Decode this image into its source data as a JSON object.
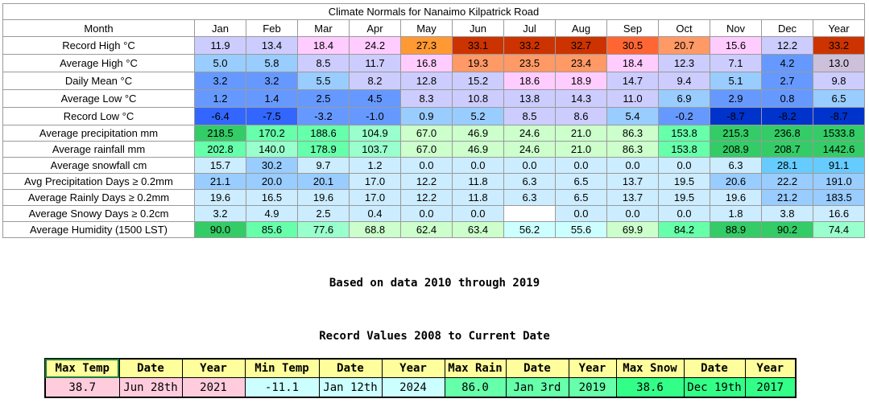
{
  "title": "Climate Normals for Nanaimo Kilpatrick Road",
  "columns": [
    "Month",
    "Jan",
    "Feb",
    "Mar",
    "Apr",
    "May",
    "Jun",
    "Jul",
    "Aug",
    "Sep",
    "Oct",
    "Nov",
    "Dec",
    "Year"
  ],
  "rows": [
    {
      "label": "Record High °C",
      "values": [
        "11.9",
        "13.4",
        "18.4",
        "24.2",
        "27.3",
        "33.1",
        "33.2",
        "32.7",
        "30.5",
        "20.7",
        "15.6",
        "12.2",
        "33.2"
      ],
      "colors": [
        "#ccccff",
        "#ccccff",
        "#ffccff",
        "#ffccff",
        "#ff9933",
        "#cc3300",
        "#cc3300",
        "#cc3300",
        "#ff6633",
        "#ff9966",
        "#ffccff",
        "#ccccff",
        "#cc3300"
      ]
    },
    {
      "label": "Average High °C",
      "values": [
        "5.0",
        "5.8",
        "8.5",
        "11.7",
        "16.8",
        "19.3",
        "23.5",
        "23.4",
        "18.4",
        "12.3",
        "7.1",
        "4.2",
        "13.0"
      ],
      "colors": [
        "#99ccff",
        "#99ccff",
        "#ccccff",
        "#ccccff",
        "#ffccff",
        "#ff9966",
        "#ff9966",
        "#ff9966",
        "#ffccff",
        "#ccccff",
        "#ccccff",
        "#6699ff",
        "#ccc0da"
      ]
    },
    {
      "label": "Daily Mean °C",
      "values": [
        "3.2",
        "3.2",
        "5.5",
        "8.2",
        "12.8",
        "15.2",
        "18.6",
        "18.9",
        "14.7",
        "9.4",
        "5.1",
        "2.7",
        "9.8"
      ],
      "colors": [
        "#6699ff",
        "#6699ff",
        "#99ccff",
        "#ccccff",
        "#ccccff",
        "#ccccff",
        "#ffccff",
        "#ffccff",
        "#ccccff",
        "#ccccff",
        "#99ccff",
        "#6699ff",
        "#ccccff"
      ]
    },
    {
      "label": "Average Low °C",
      "values": [
        "1.2",
        "1.4",
        "2.5",
        "4.5",
        "8.3",
        "10.8",
        "13.8",
        "14.3",
        "11.0",
        "6.9",
        "2.9",
        "0.8",
        "6.5"
      ],
      "colors": [
        "#6699ff",
        "#6699ff",
        "#6699ff",
        "#6699ff",
        "#ccccff",
        "#ccccff",
        "#ccccff",
        "#ccccff",
        "#ccccff",
        "#99ccff",
        "#6699ff",
        "#6699ff",
        "#99ccff"
      ]
    },
    {
      "label": "Record Low °C",
      "values": [
        "-6.4",
        "-7.5",
        "-3.2",
        "-1.0",
        "0.9",
        "5.2",
        "8.5",
        "8.6",
        "5.4",
        "-0.2",
        "-8.7",
        "-8.2",
        "-8.7"
      ],
      "colors": [
        "#3366ff",
        "#3366ff",
        "#6699ff",
        "#6699ff",
        "#99ccff",
        "#99ccff",
        "#ccccff",
        "#ccccff",
        "#99ccff",
        "#6699ff",
        "#0033cc",
        "#0033cc",
        "#0033cc"
      ]
    },
    {
      "label": "Average precipitation mm",
      "values": [
        "218.5",
        "170.2",
        "188.6",
        "104.9",
        "67.0",
        "46.9",
        "24.6",
        "21.0",
        "86.3",
        "153.8",
        "215.3",
        "236.8",
        "1533.8"
      ],
      "colors": [
        "#33cc66",
        "#66ffaa",
        "#66ffaa",
        "#99ffcc",
        "#ccffcc",
        "#ccffcc",
        "#ccffcc",
        "#ccffcc",
        "#ccffcc",
        "#66ffaa",
        "#33cc66",
        "#33cc66",
        "#33cc66"
      ]
    },
    {
      "label": "Average rainfall mm",
      "values": [
        "202.8",
        "140.0",
        "178.9",
        "103.7",
        "67.0",
        "46.9",
        "24.6",
        "21.0",
        "86.3",
        "153.8",
        "208.9",
        "208.7",
        "1442.6"
      ],
      "colors": [
        "#66ffaa",
        "#99ffcc",
        "#66ffaa",
        "#99ffcc",
        "#ccffcc",
        "#ccffcc",
        "#ccffcc",
        "#ccffcc",
        "#ccffcc",
        "#66ffaa",
        "#33cc66",
        "#33cc66",
        "#33cc66"
      ]
    },
    {
      "label": "Average snowfall cm",
      "values": [
        "15.7",
        "30.2",
        "9.7",
        "1.2",
        "0.0",
        "0.0",
        "0.0",
        "0.0",
        "0.0",
        "0.0",
        "6.3",
        "28.1",
        "91.1"
      ],
      "colors": [
        "#ccecff",
        "#99ccff",
        "#ccecff",
        "#ccecff",
        "#ccecff",
        "#ccecff",
        "#ccecff",
        "#ccecff",
        "#ccecff",
        "#ccecff",
        "#ccecff",
        "#66ccff",
        "#66ccff"
      ]
    },
    {
      "label": "Avg Precipitation Days ≥ 0.2mm",
      "values": [
        "21.1",
        "20.0",
        "20.1",
        "17.0",
        "12.2",
        "11.8",
        "6.3",
        "6.5",
        "13.7",
        "19.5",
        "20.6",
        "22.2",
        "191.0"
      ],
      "colors": [
        "#99ccff",
        "#99ccff",
        "#99ccff",
        "#ccecff",
        "#ccecff",
        "#ccecff",
        "#ccecff",
        "#ccecff",
        "#ccecff",
        "#ccecff",
        "#99ccff",
        "#99ccff",
        "#99ccff"
      ]
    },
    {
      "label": "Average Rainly Days ≥ 0.2mm",
      "values": [
        "19.6",
        "16.5",
        "19.6",
        "17.0",
        "12.2",
        "11.8",
        "6.3",
        "6.5",
        "13.7",
        "19.5",
        "19.6",
        "21.2",
        "183.5"
      ],
      "colors": [
        "#ccecff",
        "#ccecff",
        "#ccecff",
        "#ccecff",
        "#ccecff",
        "#ccecff",
        "#ccecff",
        "#ccecff",
        "#ccecff",
        "#ccecff",
        "#ccecff",
        "#99ccff",
        "#99ccff"
      ]
    },
    {
      "label": "Average Snowy Days ≥ 0.2cm",
      "values": [
        "3.2",
        "4.9",
        "2.5",
        "0.4",
        "0.0",
        "0.0",
        "",
        "0.0",
        "0.0",
        "0.0",
        "1.8",
        "3.8",
        "16.6"
      ],
      "colors": [
        "#ccecff",
        "#ccecff",
        "#ccecff",
        "#ccecff",
        "#ccecff",
        "#ccecff",
        "#ffffff",
        "#ccecff",
        "#ccecff",
        "#ccecff",
        "#ccecff",
        "#ccecff",
        "#ccecff"
      ]
    },
    {
      "label": "Average Humidity (1500 LST)",
      "values": [
        "90.0",
        "85.6",
        "77.6",
        "68.8",
        "62.4",
        "63.4",
        "56.2",
        "55.6",
        "69.9",
        "84.2",
        "88.9",
        "90.2",
        "74.4"
      ],
      "colors": [
        "#33cc66",
        "#66ffaa",
        "#99ffcc",
        "#ccffcc",
        "#ccffcc",
        "#ccffcc",
        "#ccffff",
        "#ccffff",
        "#ccffcc",
        "#66ffaa",
        "#33cc66",
        "#33cc66",
        "#99ffcc"
      ]
    }
  ],
  "note_based_on": "Based on data 2010 through 2019",
  "records_title": "Record Values 2008 to Current Date",
  "records": {
    "headers": [
      "Max Temp",
      "Date",
      "Year",
      "Min Temp",
      "Date",
      "Year",
      "Max Rain",
      "Date",
      "Year",
      "Max Snow",
      "Date",
      "Year"
    ],
    "values": [
      "38.7",
      "Jun 28th",
      "2021",
      "-11.1",
      "Jan 12th",
      "2024",
      "86.0",
      "Jan 3rd",
      "2019",
      "38.6",
      "Dec 19th",
      "2017"
    ],
    "colors": [
      "#ffccdd",
      "#ffccdd",
      "#ffccdd",
      "#ccffff",
      "#ccffff",
      "#ccffff",
      "#66ffaa",
      "#66ffaa",
      "#66ffaa",
      "#33ff88",
      "#33ff88",
      "#33ff88"
    ]
  }
}
